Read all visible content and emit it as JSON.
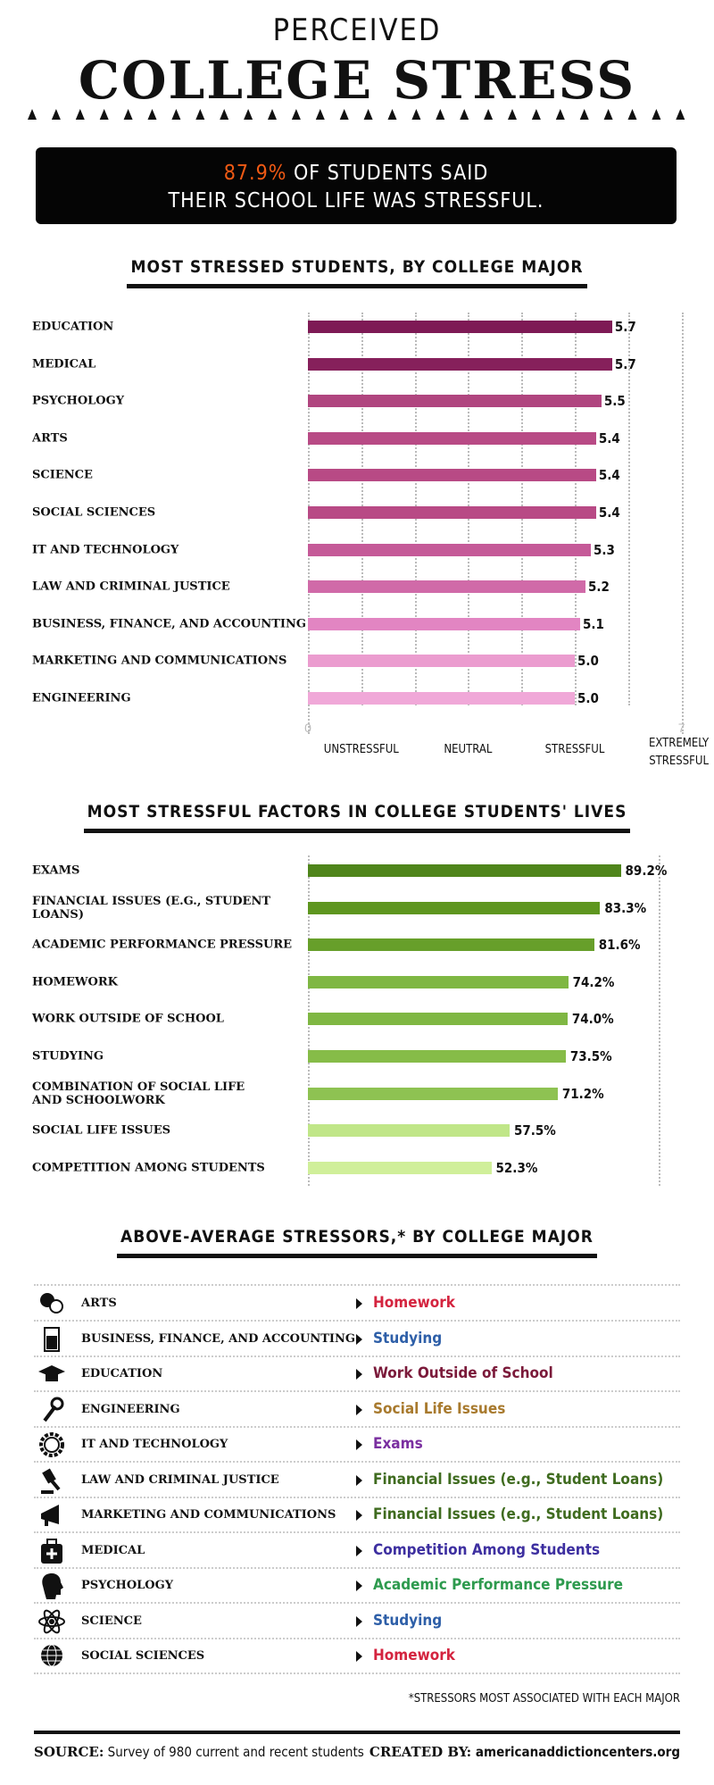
{
  "header": {
    "title_line1": "PERCEIVED",
    "title_line2": "COLLEGE STRESS"
  },
  "banner": {
    "highlight": "87.9%",
    "line1_rest": " OF STUDENTS SAID",
    "line2": "THEIR SCHOOL LIFE WAS STRESSFUL.",
    "highlight_color": "#f05a14"
  },
  "chart_data": [
    {
      "type": "bar",
      "orientation": "horizontal",
      "title": "MOST STRESSED STUDENTS, BY COLLEGE MAJOR",
      "categories": [
        "EDUCATION",
        "MEDICAL",
        "PSYCHOLOGY",
        "ARTS",
        "SCIENCE",
        "SOCIAL SCIENCES",
        "IT AND TECHNOLOGY",
        "LAW AND CRIMINAL JUSTICE",
        "BUSINESS, FINANCE, AND ACCOUNTING",
        "MARKETING AND COMMUNICATIONS",
        "ENGINEERING"
      ],
      "values": [
        5.7,
        5.7,
        5.5,
        5.4,
        5.4,
        5.4,
        5.3,
        5.2,
        5.1,
        5.0,
        5.0
      ],
      "value_labels": [
        "5.7",
        "5.7",
        "5.5",
        "5.4",
        "5.4",
        "5.4",
        "5.3",
        "5.2",
        "5.1",
        "5.0",
        "5.0"
      ],
      "colors": [
        "#7e1a55",
        "#86205b",
        "#b0457f",
        "#b84a85",
        "#b84a85",
        "#b84a85",
        "#c55a98",
        "#d06aa8",
        "#e285c2",
        "#eb9ccf",
        "#f0a8d8"
      ],
      "xlim": [
        0,
        7
      ],
      "grid": true,
      "tick_labels": [
        "0",
        "7"
      ],
      "scale_labels": [
        {
          "value": 1,
          "text": "UNSTRESSFUL"
        },
        {
          "value": 3,
          "text": "NEUTRAL"
        },
        {
          "value": 5,
          "text": "STRESSFUL"
        },
        {
          "value": 7,
          "text": "EXTREMELY STRESSFUL"
        }
      ]
    },
    {
      "type": "bar",
      "orientation": "horizontal",
      "title": "MOST STRESSFUL FACTORS IN COLLEGE STUDENTS' LIVES",
      "categories": [
        "EXAMS",
        "FINANCIAL ISSUES (E.G., STUDENT LOANS)",
        "ACADEMIC PERFORMANCE PRESSURE",
        "HOMEWORK",
        "WORK OUTSIDE OF SCHOOL",
        "STUDYING",
        "COMBINATION OF SOCIAL LIFE AND SCHOOLWORK",
        "SOCIAL LIFE ISSUES",
        "COMPETITION AMONG STUDENTS"
      ],
      "values": [
        89.2,
        83.3,
        81.6,
        74.2,
        74.0,
        73.5,
        71.2,
        57.5,
        52.3
      ],
      "value_labels": [
        "89.2%",
        "83.3%",
        "81.6%",
        "74.2%",
        "74.0%",
        "73.5%",
        "71.2%",
        "57.5%",
        "52.3%"
      ],
      "colors": [
        "#4f851b",
        "#5e961f",
        "#679f2a",
        "#7fb743",
        "#7fb743",
        "#86bc48",
        "#8ec252",
        "#c0e688",
        "#d0ef9a"
      ],
      "xlim": [
        0,
        100
      ],
      "grid": true
    }
  ],
  "stressors": {
    "title": "ABOVE-AVERAGE STRESSORS,* BY COLLEGE MAJOR",
    "rows": [
      {
        "major": "ARTS",
        "icon": "theater-masks-icon",
        "stressor": "Homework",
        "color": "#d4243f"
      },
      {
        "major": "BUSINESS, FINANCE, AND ACCOUNTING",
        "icon": "calculator-icon",
        "stressor": "Studying",
        "color": "#2e5fa8"
      },
      {
        "major": "EDUCATION",
        "icon": "graduation-cap-icon",
        "stressor": "Work Outside of School",
        "color": "#7b1a3a"
      },
      {
        "major": "ENGINEERING",
        "icon": "wrench-icon",
        "stressor": "Social Life Issues",
        "color": "#a87a2e"
      },
      {
        "major": "IT AND TECHNOLOGY",
        "icon": "gear-icon",
        "stressor": "Exams",
        "color": "#7a2fa0"
      },
      {
        "major": "LAW AND CRIMINAL JUSTICE",
        "icon": "gavel-icon",
        "stressor": "Financial Issues (e.g., Student Loans)",
        "color": "#3f6b1f"
      },
      {
        "major": "MARKETING AND COMMUNICATIONS",
        "icon": "megaphone-icon",
        "stressor": "Financial Issues (e.g., Student Loans)",
        "color": "#3f6b1f"
      },
      {
        "major": "MEDICAL",
        "icon": "medical-kit-icon",
        "stressor": "Competition Among Students",
        "color": "#3d2fa0"
      },
      {
        "major": "PSYCHOLOGY",
        "icon": "head-icon",
        "stressor": "Academic Performance Pressure",
        "color": "#2e9a4e"
      },
      {
        "major": "SCIENCE",
        "icon": "atom-icon",
        "stressor": "Studying",
        "color": "#2e5fa8"
      },
      {
        "major": "SOCIAL SCIENCES",
        "icon": "globe-icon",
        "stressor": "Homework",
        "color": "#d4243f"
      }
    ],
    "footnote": "*STRESSORS MOST ASSOCIATED WITH EACH MAJOR"
  },
  "footer": {
    "source_label": "SOURCE:",
    "source_text": " Survey of 980 current and recent students",
    "created_label": "CREATED BY:",
    "created_text": " americanaddictioncenters.org"
  }
}
